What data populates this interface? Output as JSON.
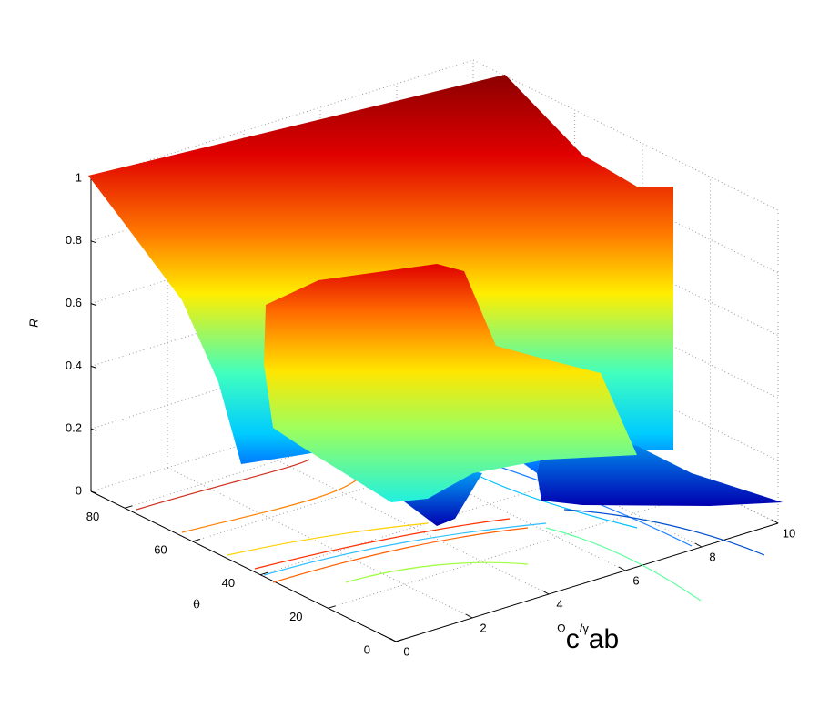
{
  "chart_data": {
    "type": "surface",
    "zlabel": "R",
    "ylabel": "θ",
    "xlabel": [
      "Ω",
      "c",
      "/γ",
      "ab"
    ],
    "xlim": [
      0,
      10
    ],
    "xticks": [
      0,
      2,
      4,
      6,
      8,
      10
    ],
    "ylim": [
      0,
      90
    ],
    "yticks": [
      0,
      20,
      40,
      60,
      80
    ],
    "zlim": [
      0,
      1
    ],
    "zticks": [
      0,
      0.2,
      0.4,
      0.6,
      0.8,
      1
    ],
    "grid": true
  }
}
